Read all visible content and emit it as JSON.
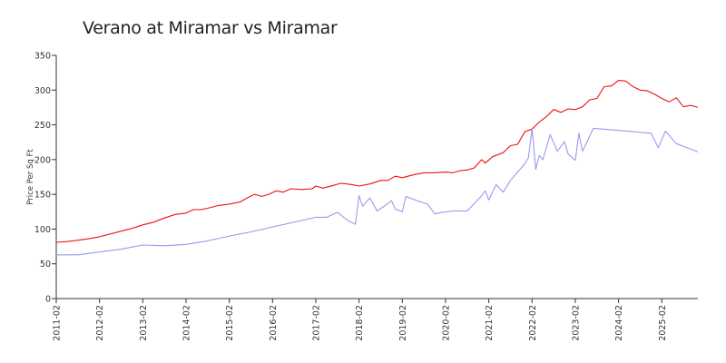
{
  "chart_data": {
    "type": "line",
    "title": "Verano at Miramar vs Miramar",
    "xlabel": "",
    "ylabel": "Price Per Sq Ft",
    "ylim": [
      0,
      350
    ],
    "yticks": [
      0,
      50,
      100,
      150,
      200,
      250,
      300,
      350
    ],
    "xlim": [
      "2011-02",
      "2025-12"
    ],
    "xticks": [
      "2011-02",
      "2012-02",
      "2013-02",
      "2014-02",
      "2015-02",
      "2016-02",
      "2017-02",
      "2018-02",
      "2019-02",
      "2020-02",
      "2021-02",
      "2022-02",
      "2023-02",
      "2024-02",
      "2025-02"
    ],
    "grid": false,
    "legend": "none",
    "series": [
      {
        "color": "#ee1111",
        "points": [
          [
            "2011-02",
            81
          ],
          [
            "2011-05",
            82
          ],
          [
            "2011-08",
            84
          ],
          [
            "2011-11",
            86
          ],
          [
            "2012-02",
            89
          ],
          [
            "2012-05",
            93
          ],
          [
            "2012-08",
            97
          ],
          [
            "2012-11",
            101
          ],
          [
            "2013-02",
            106
          ],
          [
            "2013-05",
            110
          ],
          [
            "2013-08",
            116
          ],
          [
            "2013-11",
            121
          ],
          [
            "2014-02",
            123
          ],
          [
            "2014-04",
            128
          ],
          [
            "2014-06",
            128
          ],
          [
            "2014-08",
            130
          ],
          [
            "2014-11",
            134
          ],
          [
            "2015-02",
            136
          ],
          [
            "2015-05",
            139
          ],
          [
            "2015-07",
            145
          ],
          [
            "2015-09",
            150
          ],
          [
            "2015-11",
            147
          ],
          [
            "2016-01",
            150
          ],
          [
            "2016-03",
            155
          ],
          [
            "2016-05",
            153
          ],
          [
            "2016-07",
            158
          ],
          [
            "2016-10",
            157
          ],
          [
            "2017-01",
            158
          ],
          [
            "2017-02",
            162
          ],
          [
            "2017-04",
            159
          ],
          [
            "2017-07",
            163
          ],
          [
            "2017-09",
            166
          ],
          [
            "2017-12",
            164
          ],
          [
            "2018-02",
            162
          ],
          [
            "2018-05",
            165
          ],
          [
            "2018-08",
            170
          ],
          [
            "2018-10",
            170
          ],
          [
            "2018-12",
            176
          ],
          [
            "2019-02",
            174
          ],
          [
            "2019-05",
            178
          ],
          [
            "2019-08",
            181
          ],
          [
            "2019-11",
            181
          ],
          [
            "2020-02",
            182
          ],
          [
            "2020-04",
            181
          ],
          [
            "2020-06",
            184
          ],
          [
            "2020-08",
            185
          ],
          [
            "2020-10",
            188
          ],
          [
            "2020-12",
            200
          ],
          [
            "2021-01",
            195
          ],
          [
            "2021-03",
            204
          ],
          [
            "2021-06",
            210
          ],
          [
            "2021-08",
            220
          ],
          [
            "2021-10",
            222
          ],
          [
            "2021-12",
            240
          ],
          [
            "2022-02",
            244
          ],
          [
            "2022-04",
            254
          ],
          [
            "2022-06",
            262
          ],
          [
            "2022-08",
            272
          ],
          [
            "2022-10",
            268
          ],
          [
            "2022-12",
            273
          ],
          [
            "2023-02",
            272
          ],
          [
            "2023-04",
            276
          ],
          [
            "2023-06",
            286
          ],
          [
            "2023-08",
            288
          ],
          [
            "2023-10",
            305
          ],
          [
            "2023-12",
            306
          ],
          [
            "2024-02",
            314
          ],
          [
            "2024-04",
            313
          ],
          [
            "2024-06",
            305
          ],
          [
            "2024-08",
            300
          ],
          [
            "2024-10",
            299
          ],
          [
            "2024-12",
            294
          ],
          [
            "2025-02",
            288
          ],
          [
            "2025-04",
            283
          ],
          [
            "2025-06",
            289
          ],
          [
            "2025-08",
            276
          ],
          [
            "2025-10",
            278
          ],
          [
            "2025-12",
            275
          ]
        ]
      },
      {
        "color": "#9999ee",
        "points": [
          [
            "2011-02",
            63
          ],
          [
            "2011-08",
            63
          ],
          [
            "2012-02",
            67
          ],
          [
            "2012-08",
            71
          ],
          [
            "2013-02",
            77
          ],
          [
            "2013-08",
            76
          ],
          [
            "2014-02",
            78
          ],
          [
            "2014-08",
            83
          ],
          [
            "2015-02",
            90
          ],
          [
            "2015-08",
            96
          ],
          [
            "2016-02",
            103
          ],
          [
            "2016-08",
            110
          ],
          [
            "2017-02",
            117
          ],
          [
            "2017-05",
            117
          ],
          [
            "2017-08",
            124
          ],
          [
            "2017-11",
            112
          ],
          [
            "2018-01",
            107
          ],
          [
            "2018-02",
            148
          ],
          [
            "2018-03",
            133
          ],
          [
            "2018-05",
            145
          ],
          [
            "2018-07",
            126
          ],
          [
            "2018-09",
            133
          ],
          [
            "2018-11",
            141
          ],
          [
            "2018-12",
            129
          ],
          [
            "2019-02",
            125
          ],
          [
            "2019-03",
            147
          ],
          [
            "2019-06",
            141
          ],
          [
            "2019-09",
            136
          ],
          [
            "2019-11",
            122
          ],
          [
            "2020-01",
            124
          ],
          [
            "2020-04",
            126
          ],
          [
            "2020-08",
            126
          ],
          [
            "2020-12",
            148
          ],
          [
            "2021-01",
            155
          ],
          [
            "2021-02",
            142
          ],
          [
            "2021-04",
            164
          ],
          [
            "2021-06",
            153
          ],
          [
            "2021-08",
            170
          ],
          [
            "2021-10",
            182
          ],
          [
            "2021-12",
            194
          ],
          [
            "2022-01",
            203
          ],
          [
            "2022-02",
            245
          ],
          [
            "2022-03",
            186
          ],
          [
            "2022-04",
            206
          ],
          [
            "2022-05",
            200
          ],
          [
            "2022-07",
            236
          ],
          [
            "2022-09",
            212
          ],
          [
            "2022-11",
            226
          ],
          [
            "2022-12",
            208
          ],
          [
            "2023-02",
            199
          ],
          [
            "2023-03",
            238
          ],
          [
            "2023-04",
            212
          ],
          [
            "2023-07",
            245
          ],
          [
            "2024-02",
            242
          ],
          [
            "2024-11",
            238
          ],
          [
            "2025-01",
            217
          ],
          [
            "2025-03",
            241
          ],
          [
            "2025-06",
            223
          ],
          [
            "2025-12",
            211
          ]
        ]
      }
    ]
  }
}
